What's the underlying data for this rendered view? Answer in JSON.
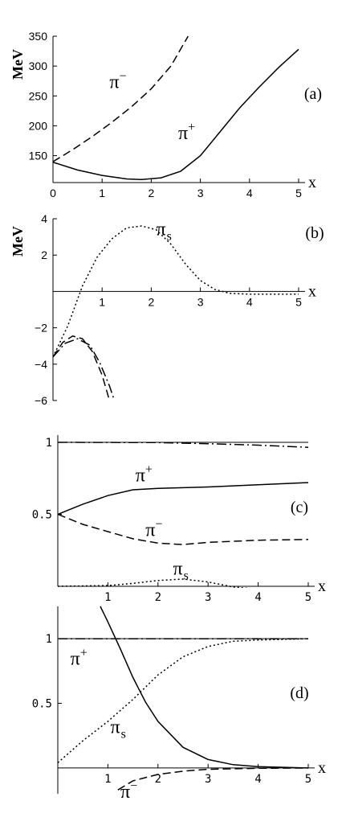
{
  "chart_data": [
    {
      "type": "line",
      "panel_label": "(a)",
      "ylabel": "MeV",
      "xlabel": "x",
      "xlim": [
        0,
        5
      ],
      "ylim": [
        105,
        350
      ],
      "x_axis_at_y": 105,
      "x_ticks": [
        0,
        1,
        2,
        3,
        4,
        5
      ],
      "y_ticks": [
        150,
        200,
        250,
        300,
        350
      ],
      "y_tick_labels": [
        "150",
        "200",
        "250",
        "300",
        "350"
      ],
      "series": [
        {
          "style": "solid",
          "points": [
            [
              0,
              139
            ],
            [
              0.5,
              126
            ],
            [
              1,
              117
            ],
            [
              1.5,
              111
            ],
            [
              1.8,
              110
            ],
            [
              2.2,
              113
            ],
            [
              2.6,
              124
            ],
            [
              3,
              150
            ],
            [
              3.4,
              190
            ],
            [
              3.8,
              230
            ],
            [
              4.2,
              265
            ],
            [
              4.6,
              298
            ],
            [
              5,
              328
            ]
          ]
        },
        {
          "style": "dashed",
          "points": [
            [
              0,
              140
            ],
            [
              0.4,
              160
            ],
            [
              0.8,
              182
            ],
            [
              1.2,
              206
            ],
            [
              1.6,
              232
            ],
            [
              2,
              262
            ],
            [
              2.4,
              300
            ],
            [
              2.75,
              350
            ]
          ]
        }
      ],
      "annotations": [
        {
          "base": "π",
          "sup": "−",
          "x": 1.15,
          "y": 263
        },
        {
          "base": "π",
          "sup": "+",
          "x": 2.55,
          "y": 178
        }
      ],
      "tick_font": "sans"
    },
    {
      "type": "line",
      "panel_label": "(b)",
      "ylabel": "MeV",
      "xlabel": "x",
      "xlim": [
        0,
        5
      ],
      "ylim": [
        -6,
        4
      ],
      "x_axis_at_y": 0,
      "x_ticks": [
        1,
        2,
        3,
        4,
        5
      ],
      "y_ticks": [
        -6,
        -4,
        -2,
        2,
        4
      ],
      "y_tick_labels": [
        "−6",
        "−4",
        "−2",
        "2",
        "4"
      ],
      "series": [
        {
          "style": "dotted",
          "points": [
            [
              0,
              -3.6
            ],
            [
              0.3,
              -1.9
            ],
            [
              0.6,
              0.3
            ],
            [
              0.9,
              1.9
            ],
            [
              1.2,
              2.9
            ],
            [
              1.5,
              3.5
            ],
            [
              1.8,
              3.6
            ],
            [
              2.1,
              3.4
            ],
            [
              2.4,
              2.6
            ],
            [
              2.7,
              1.5
            ],
            [
              3,
              0.6
            ],
            [
              3.3,
              0.1
            ],
            [
              3.6,
              -0.1
            ],
            [
              4,
              -0.15
            ],
            [
              5,
              -0.15
            ]
          ]
        },
        {
          "style": "dashed",
          "points": [
            [
              0,
              -3.6
            ],
            [
              0.2,
              -2.8
            ],
            [
              0.4,
              -2.45
            ],
            [
              0.6,
              -2.6
            ],
            [
              0.8,
              -3.3
            ],
            [
              1,
              -4.6
            ],
            [
              1.15,
              -6
            ]
          ]
        },
        {
          "style": "dashdot",
          "points": [
            [
              0,
              -3.6
            ],
            [
              0.25,
              -2.85
            ],
            [
              0.5,
              -2.6
            ],
            [
              0.75,
              -2.95
            ],
            [
              0.95,
              -3.9
            ],
            [
              1.15,
              -5.2
            ],
            [
              1.25,
              -6
            ]
          ]
        }
      ],
      "annotations": [
        {
          "base": "π",
          "sub": "s",
          "x": 2.1,
          "y": 3.1
        }
      ],
      "tick_font": "sans"
    },
    {
      "type": "line",
      "panel_label": "(c)",
      "xlabel": "x",
      "xlim": [
        0,
        5
      ],
      "ylim": [
        0,
        1.05
      ],
      "x_axis_at_y": 0,
      "x_ticks": [
        1,
        2,
        3,
        4,
        5
      ],
      "y_ticks": [
        0.5,
        1
      ],
      "y_tick_labels": [
        "0.5",
        "1"
      ],
      "ref_lines": [
        1
      ],
      "series": [
        {
          "style": "solid",
          "points": [
            [
              0,
              0.5
            ],
            [
              0.5,
              0.57
            ],
            [
              1,
              0.63
            ],
            [
              1.5,
              0.67
            ],
            [
              2,
              0.68
            ],
            [
              3,
              0.69
            ],
            [
              4,
              0.705
            ],
            [
              5,
              0.72
            ]
          ]
        },
        {
          "style": "dashed",
          "points": [
            [
              0,
              0.5
            ],
            [
              0.5,
              0.43
            ],
            [
              1,
              0.38
            ],
            [
              1.5,
              0.33
            ],
            [
              2,
              0.3
            ],
            [
              2.5,
              0.29
            ],
            [
              3,
              0.305
            ],
            [
              4,
              0.32
            ],
            [
              5,
              0.325
            ]
          ]
        },
        {
          "style": "dotted",
          "points": [
            [
              0,
              0
            ],
            [
              1,
              0.005
            ],
            [
              1.5,
              0.02
            ],
            [
              2,
              0.04
            ],
            [
              2.5,
              0.05
            ],
            [
              3,
              0.03
            ],
            [
              3.5,
              -0.005
            ],
            [
              4,
              -0.02
            ],
            [
              5,
              -0.035
            ]
          ]
        },
        {
          "style": "dashdot",
          "points": [
            [
              0,
              1
            ],
            [
              2,
              0.998
            ],
            [
              3,
              0.99
            ],
            [
              4,
              0.98
            ],
            [
              5,
              0.965
            ]
          ]
        }
      ],
      "annotations": [
        {
          "base": "π",
          "sup": "+",
          "x": 1.55,
          "y": 0.73
        },
        {
          "base": "π",
          "sup": "−",
          "x": 1.75,
          "y": 0.35
        },
        {
          "base": "π",
          "sub": "s",
          "x": 2.3,
          "y": 0.08
        }
      ],
      "tick_font": "mono"
    },
    {
      "type": "line",
      "panel_label": "(d)",
      "xlabel": "x",
      "xlim": [
        0,
        5
      ],
      "ylim": [
        -0.2,
        1.25
      ],
      "x_axis_at_y": 0,
      "x_ticks": [
        1,
        2,
        3,
        4,
        5
      ],
      "y_ticks": [
        0.5,
        1
      ],
      "y_tick_labels": [
        "0.5",
        "1"
      ],
      "ref_lines": [
        1
      ],
      "series": [
        {
          "style": "solid",
          "points": [
            [
              0.85,
              1.25
            ],
            [
              1,
              1.13
            ],
            [
              1.25,
              0.92
            ],
            [
              1.5,
              0.7
            ],
            [
              1.75,
              0.51
            ],
            [
              2,
              0.36
            ],
            [
              2.5,
              0.16
            ],
            [
              3,
              0.065
            ],
            [
              3.5,
              0.025
            ],
            [
              4,
              0.01
            ],
            [
              5,
              0
            ]
          ]
        },
        {
          "style": "dotted",
          "points": [
            [
              0,
              0.04
            ],
            [
              0.5,
              0.21
            ],
            [
              1,
              0.36
            ],
            [
              1.5,
              0.53
            ],
            [
              2,
              0.72
            ],
            [
              2.5,
              0.86
            ],
            [
              3,
              0.94
            ],
            [
              3.5,
              0.98
            ],
            [
              4,
              0.99
            ],
            [
              5,
              1
            ]
          ]
        },
        {
          "style": "dashed",
          "points": [
            [
              1.2,
              -0.17
            ],
            [
              1.5,
              -0.1
            ],
            [
              2,
              -0.05
            ],
            [
              2.5,
              -0.025
            ],
            [
              3,
              -0.01
            ],
            [
              4,
              -0.003
            ],
            [
              5,
              0
            ]
          ]
        },
        {
          "style": "dashdot",
          "points": [
            [
              0,
              1
            ],
            [
              5,
              1
            ]
          ]
        }
      ],
      "annotations": [
        {
          "base": "π",
          "sup": "+",
          "x": 0.25,
          "y": 0.8
        },
        {
          "base": "π",
          "sub": "s",
          "x": 1.05,
          "y": 0.27
        },
        {
          "base": "π",
          "sup": "−",
          "x": 1.25,
          "y": -0.23
        }
      ],
      "tick_font": "mono"
    }
  ]
}
